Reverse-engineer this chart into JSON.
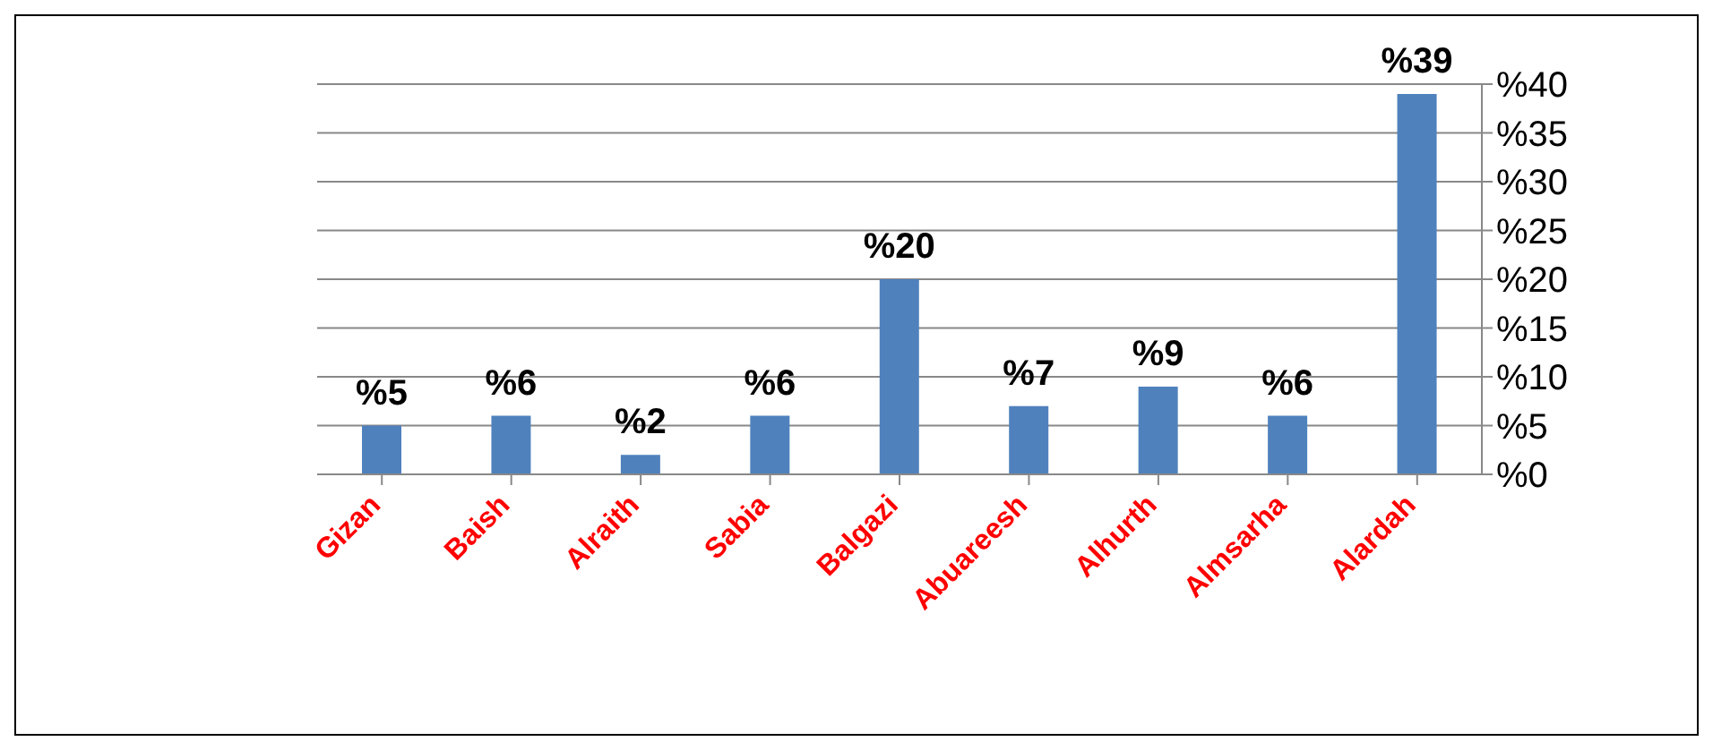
{
  "chart_data": {
    "type": "bar",
    "categories": [
      "Gizan",
      "Baish",
      "Alraith",
      "Sabia",
      "Balgazi",
      "Abuareesh",
      "Alhurth",
      "Almsarha",
      "Alardah"
    ],
    "values": [
      5,
      6,
      2,
      6,
      20,
      7,
      9,
      6,
      39
    ],
    "value_labels": [
      "%5",
      "%6",
      "%2",
      "%6",
      "%20",
      "%7",
      "%9",
      "%6",
      "%39"
    ],
    "color": "#4f81bd",
    "ylim": [
      0,
      40
    ],
    "yticks": [
      {
        "value": 0,
        "label": "%0"
      },
      {
        "value": 5,
        "label": "%5"
      },
      {
        "value": 10,
        "label": "%10"
      },
      {
        "value": 15,
        "label": "%15"
      },
      {
        "value": 20,
        "label": "%20"
      },
      {
        "value": 25,
        "label": "%25"
      },
      {
        "value": 30,
        "label": "%30"
      },
      {
        "value": 35,
        "label": "%35"
      },
      {
        "value": 40,
        "label": "%40"
      }
    ],
    "grid": "y",
    "legend": false
  }
}
